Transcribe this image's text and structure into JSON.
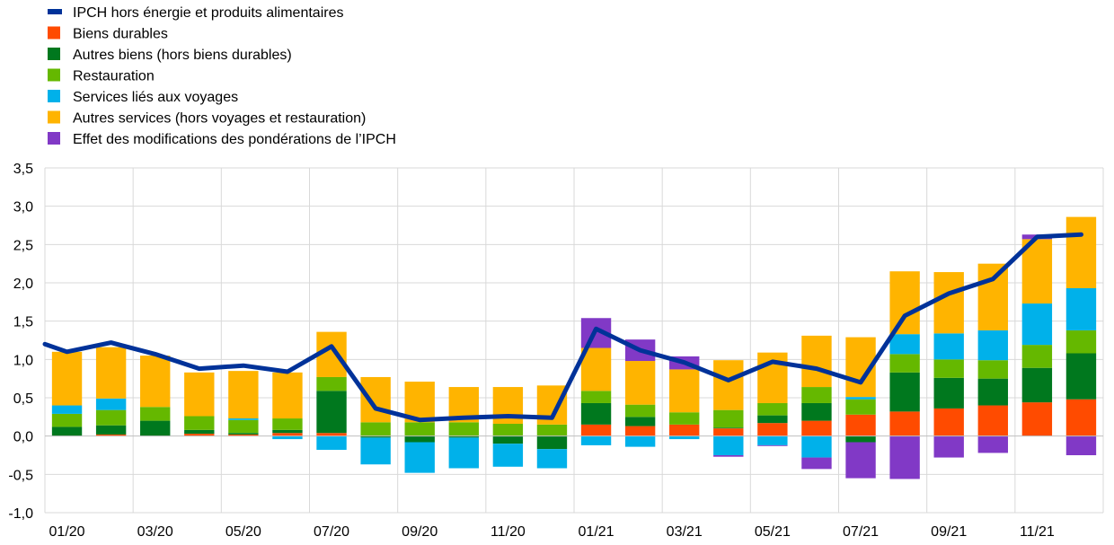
{
  "chart_data": {
    "type": "bar",
    "categories": [
      "01/20",
      "02/20",
      "03/20",
      "04/20",
      "05/20",
      "06/20",
      "07/20",
      "08/20",
      "09/20",
      "10/20",
      "11/20",
      "12/20",
      "01/21",
      "02/21",
      "03/21",
      "04/21",
      "05/21",
      "06/21",
      "07/21",
      "08/21",
      "09/21",
      "10/21",
      "11/21",
      "12/21"
    ],
    "x_tick_labels": [
      "01/20",
      "03/20",
      "05/20",
      "07/20",
      "09/20",
      "11/20",
      "01/21",
      "03/21",
      "05/21",
      "07/21",
      "09/21",
      "11/21"
    ],
    "ylim": [
      -1.0,
      3.5
    ],
    "y_ticks": [
      "-1,0",
      "-0,5",
      "0,0",
      "0,5",
      "1,0",
      "1,5",
      "2,0",
      "2,5",
      "3,0",
      "3,5"
    ],
    "grid": true,
    "legend_position": "top-left",
    "line": {
      "name": "IPCH hors énergie et produits alimentaires",
      "color": "#003299",
      "values": [
        1.1,
        1.22,
        1.07,
        0.88,
        0.92,
        0.84,
        1.17,
        0.36,
        0.21,
        0.24,
        0.26,
        0.24,
        1.4,
        1.12,
        0.96,
        0.73,
        0.97,
        0.88,
        0.7,
        1.57,
        1.86,
        2.05,
        2.6,
        2.63
      ]
    },
    "series": [
      {
        "name": "Biens durables",
        "color": "#ff4b00",
        "values": [
          0.0,
          0.02,
          0.0,
          0.03,
          0.02,
          0.04,
          0.04,
          0.0,
          0.0,
          0.0,
          0.0,
          0.0,
          0.15,
          0.13,
          0.15,
          0.1,
          0.17,
          0.2,
          0.28,
          0.32,
          0.36,
          0.4,
          0.44,
          0.48
        ]
      },
      {
        "name": "Autres biens (hors biens durables)",
        "color": "#00781e",
        "values": [
          0.12,
          0.12,
          0.2,
          0.05,
          0.02,
          0.04,
          0.55,
          -0.02,
          -0.08,
          -0.02,
          -0.1,
          -0.17,
          0.28,
          0.12,
          0.0,
          0.01,
          0.1,
          0.23,
          -0.08,
          0.51,
          0.4,
          0.35,
          0.45,
          0.6
        ]
      },
      {
        "name": "Restauration",
        "color": "#65b800",
        "values": [
          0.17,
          0.2,
          0.18,
          0.18,
          0.17,
          0.15,
          0.18,
          0.18,
          0.18,
          0.18,
          0.16,
          0.15,
          0.16,
          0.16,
          0.16,
          0.23,
          0.16,
          0.21,
          0.2,
          0.24,
          0.24,
          0.24,
          0.3,
          0.3
        ]
      },
      {
        "name": "Services liés aux voyages",
        "color": "#00b1ea",
        "values": [
          0.11,
          0.15,
          0.0,
          0.0,
          0.02,
          -0.04,
          -0.18,
          -0.35,
          -0.4,
          -0.4,
          -0.3,
          -0.25,
          -0.12,
          -0.14,
          -0.04,
          -0.25,
          -0.12,
          -0.28,
          0.03,
          0.26,
          0.34,
          0.39,
          0.54,
          0.55
        ]
      },
      {
        "name": "Autres services (hors voyages et restauration)",
        "color": "#ffb400",
        "values": [
          0.7,
          0.67,
          0.67,
          0.57,
          0.62,
          0.6,
          0.59,
          0.59,
          0.53,
          0.46,
          0.48,
          0.51,
          0.56,
          0.57,
          0.56,
          0.65,
          0.66,
          0.67,
          0.78,
          0.82,
          0.8,
          0.87,
          0.84,
          0.93
        ]
      },
      {
        "name": "Effet des modifications des pondérations de l’IPCH",
        "color": "#8139c6",
        "values": [
          0.0,
          0.0,
          0.0,
          0.0,
          0.0,
          0.0,
          0.0,
          0.0,
          0.0,
          0.0,
          0.0,
          0.0,
          0.39,
          0.28,
          0.17,
          -0.02,
          -0.01,
          -0.15,
          -0.47,
          -0.56,
          -0.28,
          -0.22,
          0.06,
          -0.25
        ]
      }
    ],
    "legend_order": [
      "IPCH hors énergie et produits alimentaires",
      "Biens durables",
      "Autres biens (hors biens durables)",
      "Restauration",
      "Services liés aux voyages",
      "Autres services (hors voyages et restauration)",
      "Effet des modifications des pondérations de l’IPCH"
    ]
  }
}
